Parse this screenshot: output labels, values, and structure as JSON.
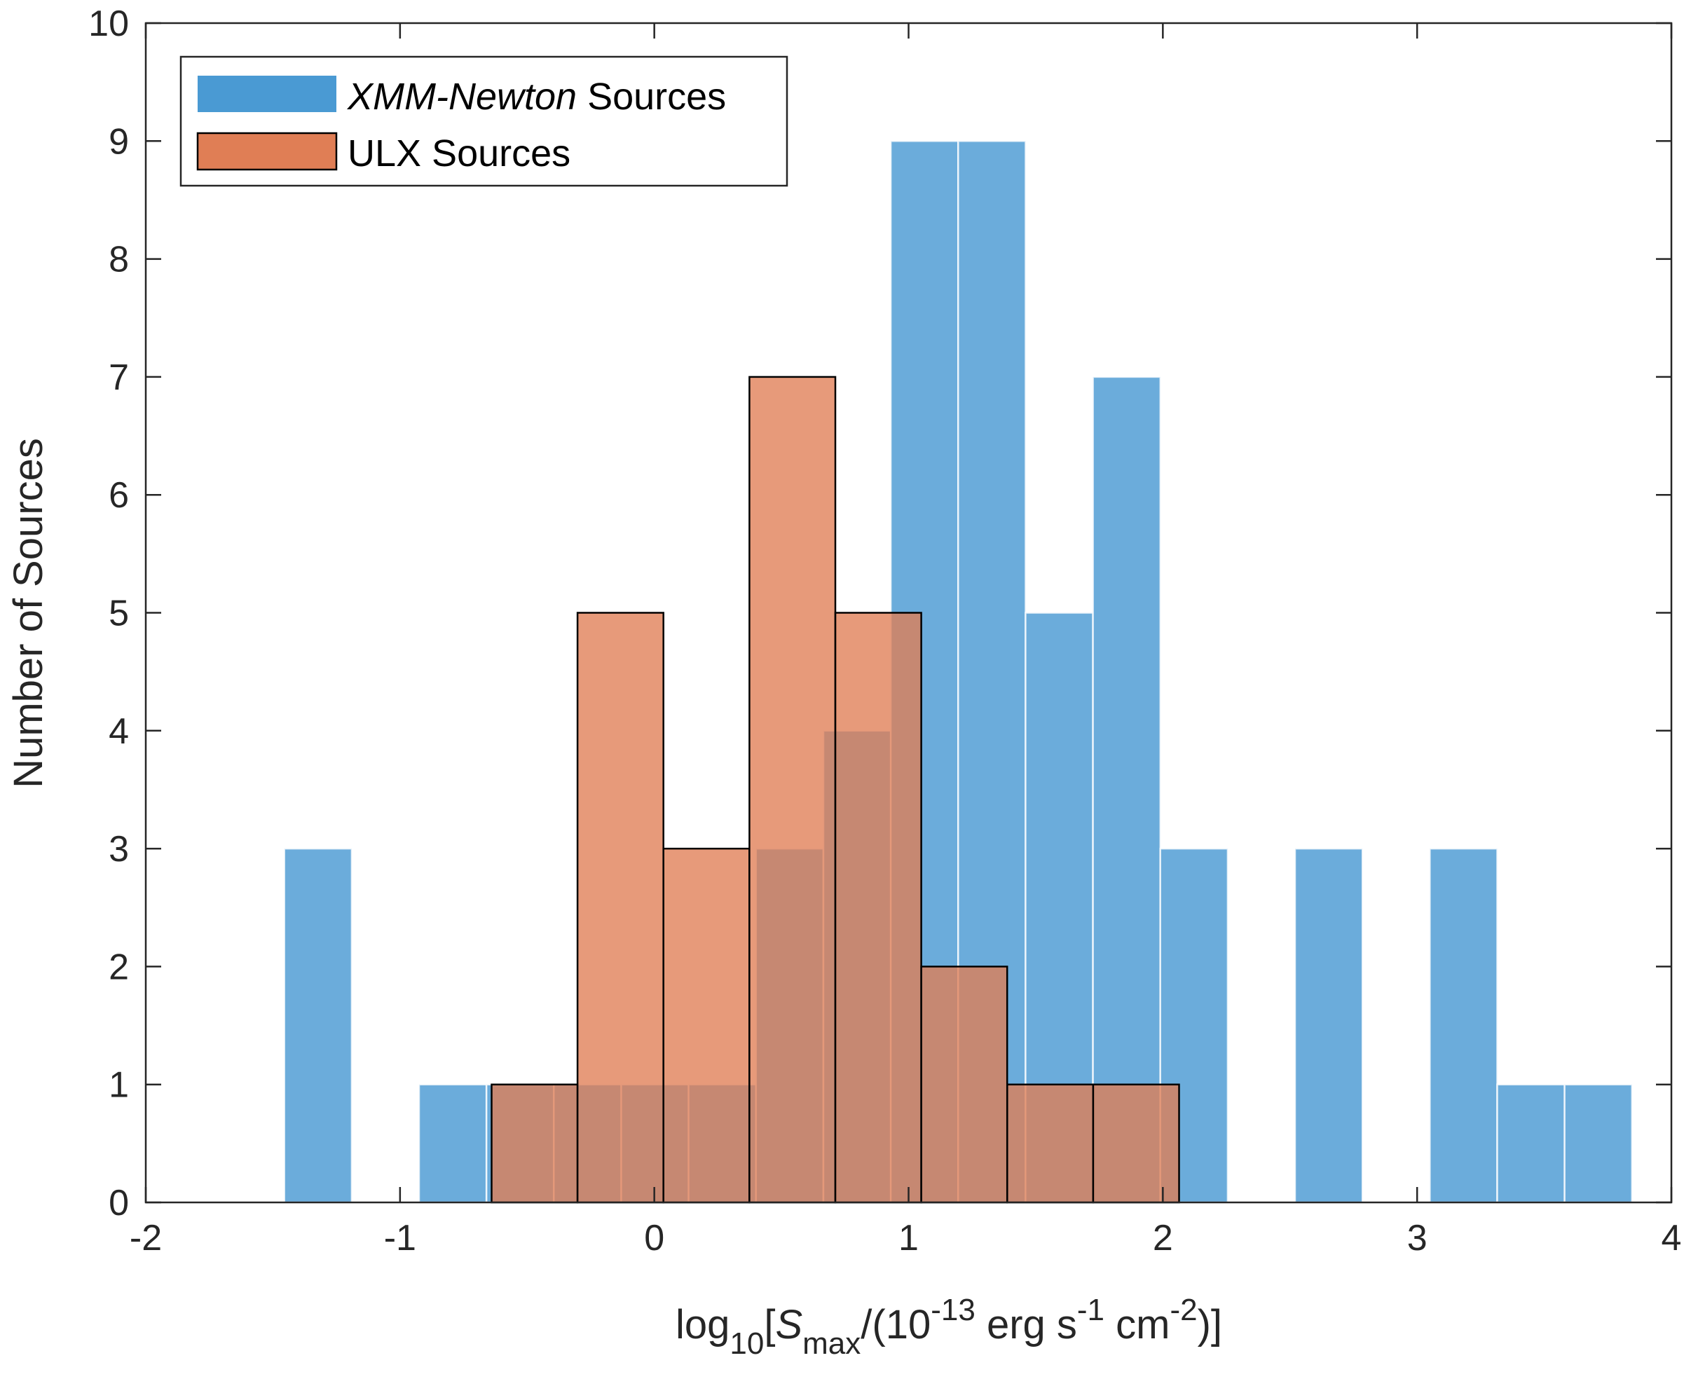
{
  "chart_data": {
    "type": "bar",
    "subtype": "overlapping-histogram",
    "title": "",
    "xlim": [
      -2,
      4
    ],
    "ylim": [
      0,
      10
    ],
    "xticks": [
      -2,
      -1,
      0,
      1,
      2,
      3,
      4
    ],
    "xtick_labels": [
      "-2",
      "-1",
      "0",
      "1",
      "2",
      "3",
      "4"
    ],
    "yticks": [
      0,
      1,
      2,
      3,
      4,
      5,
      6,
      7,
      8,
      9,
      10
    ],
    "ytick_labels": [
      "0",
      "1",
      "2",
      "3",
      "4",
      "5",
      "6",
      "7",
      "8",
      "9",
      "10"
    ],
    "xlabel": {
      "base": "log",
      "sub1": "10",
      "bracket_open": "[",
      "var": "S",
      "sub2": "max",
      "slash_open": "/(10",
      "sup1": "-13",
      "unit1": " erg s",
      "sup2": "-1",
      "unit2": " cm",
      "sup3": "-2",
      "close": ")]"
    },
    "ylabel": "Number of Sources",
    "legend": {
      "placement": "top-left",
      "entries": [
        {
          "italic_part": "XMM-Newton",
          "rest": " Sources",
          "color": "#4a9ad3"
        },
        {
          "italic_part": "",
          "rest": "ULX Sources",
          "color": "#e07e55"
        }
      ]
    },
    "series": [
      {
        "name": "XMM-Newton Sources",
        "color": "#0072BD",
        "fill": "#4a9ad3",
        "opacity": 0.82,
        "edge": false,
        "bin_width": 0.265,
        "bins": [
          {
            "start": -1.455,
            "count": 3
          },
          {
            "start": -1.19,
            "count": 0
          },
          {
            "start": -0.925,
            "count": 1
          },
          {
            "start": -0.66,
            "count": 1
          },
          {
            "start": -0.395,
            "count": 1
          },
          {
            "start": -0.13,
            "count": 1
          },
          {
            "start": 0.135,
            "count": 1
          },
          {
            "start": 0.4,
            "count": 3
          },
          {
            "start": 0.665,
            "count": 4
          },
          {
            "start": 0.93,
            "count": 9
          },
          {
            "start": 1.195,
            "count": 9
          },
          {
            "start": 1.46,
            "count": 5
          },
          {
            "start": 1.725,
            "count": 7
          },
          {
            "start": 1.99,
            "count": 3
          },
          {
            "start": 2.255,
            "count": 0
          },
          {
            "start": 2.52,
            "count": 3
          },
          {
            "start": 2.785,
            "count": 0
          },
          {
            "start": 3.05,
            "count": 3
          },
          {
            "start": 3.315,
            "count": 1
          },
          {
            "start": 3.58,
            "count": 1
          }
        ]
      },
      {
        "name": "ULX Sources",
        "color": "#D95319",
        "fill": "#e07e55",
        "opacity": 0.78,
        "edge": true,
        "bin_width": 0.338,
        "bins": [
          {
            "start": -0.64,
            "count": 1
          },
          {
            "start": -0.302,
            "count": 5
          },
          {
            "start": 0.036,
            "count": 3
          },
          {
            "start": 0.374,
            "count": 7
          },
          {
            "start": 0.712,
            "count": 5
          },
          {
            "start": 1.05,
            "count": 2
          },
          {
            "start": 1.388,
            "count": 1
          },
          {
            "start": 1.726,
            "count": 1
          }
        ]
      }
    ]
  }
}
